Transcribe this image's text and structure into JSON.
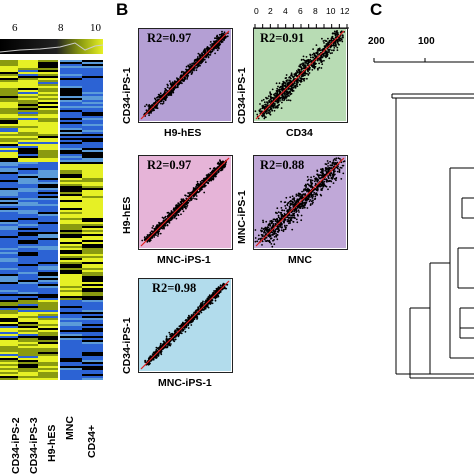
{
  "panels": {
    "A": "",
    "B": "B",
    "C": "C"
  },
  "heatmap": {
    "colorbar_ticks": [
      "6",
      "8",
      "10"
    ],
    "column_labels": [
      "CD34-iPS-2",
      "CD34-iPS-3",
      "H9-hES",
      "MNC",
      "CD34+"
    ],
    "colors": {
      "yellow": "#e6f025",
      "blue": "#2c63d4",
      "black": "#000000",
      "light_blue": "#5b9bd9"
    }
  },
  "scatter_panels": [
    {
      "r2": "R2=0.97",
      "xlabel": "H9-hES",
      "ylabel": "CD34-iPS-1",
      "bg": "#b49fd4"
    },
    {
      "r2": "R2=0.91",
      "xlabel": "CD34",
      "ylabel": "CD34-iPS-1",
      "bg": "#b8dcb4"
    },
    {
      "r2": "R2=0.97",
      "xlabel": "MNC-iPS-1",
      "ylabel": "H9-hES",
      "bg": "#e6b4d8"
    },
    {
      "r2": "R2=0.88",
      "xlabel": "MNC",
      "ylabel": "MNC-iPS-1",
      "bg": "#c0a8d8"
    },
    {
      "r2": "R2=0.98",
      "xlabel": "MNC-iPS-1",
      "ylabel": "CD34-iPS-1",
      "bg": "#b2dcec"
    }
  ],
  "scatter_top_axis": {
    "ticks": [
      "0",
      "2",
      "4",
      "6",
      "8",
      "10",
      "12"
    ],
    "range": [
      0,
      12
    ]
  },
  "dendrogram": {
    "ticks": [
      "200",
      "100"
    ]
  },
  "chart_data": {
    "type": "scatter",
    "title": "",
    "panels": [
      {
        "r2": 0.97,
        "x": "H9-hES",
        "y": "CD34-iPS-1"
      },
      {
        "r2": 0.91,
        "x": "CD34",
        "y": "CD34-iPS-1"
      },
      {
        "r2": 0.97,
        "x": "MNC-iPS-1",
        "y": "H9-hES"
      },
      {
        "r2": 0.88,
        "x": "MNC",
        "y": "MNC-iPS-1"
      },
      {
        "r2": 0.98,
        "x": "MNC-iPS-1",
        "y": "CD34-iPS-1"
      }
    ],
    "xlim": [
      0,
      12
    ]
  }
}
